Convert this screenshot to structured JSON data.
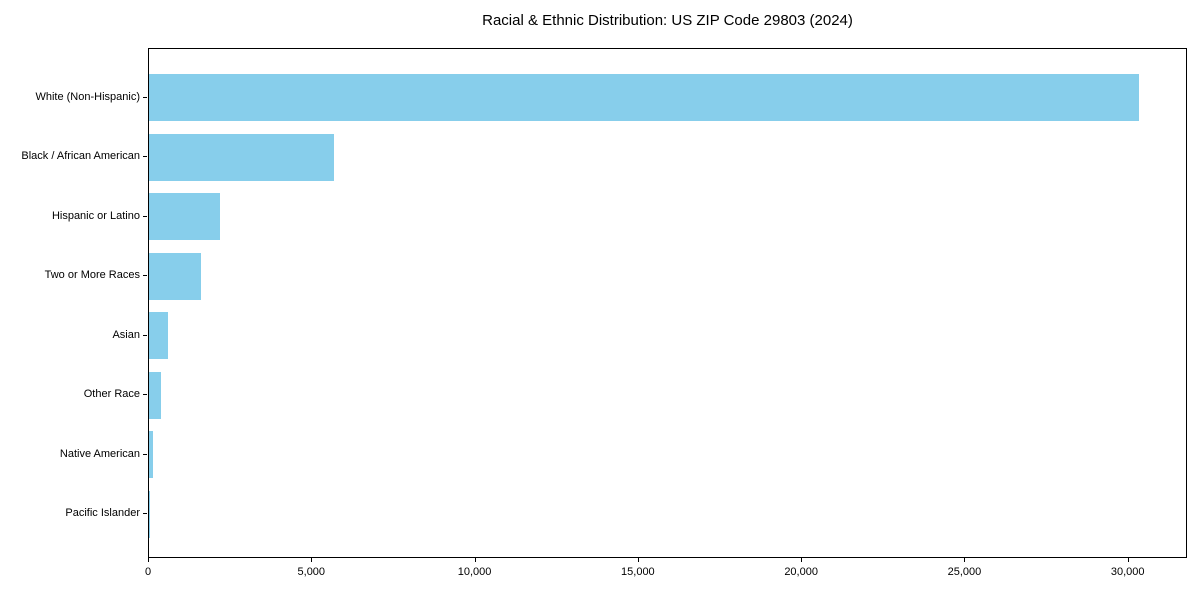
{
  "chart_data": {
    "type": "bar",
    "orientation": "horizontal",
    "title": "Racial & Ethnic Distribution: US ZIP Code 29803 (2024)",
    "xlabel": "",
    "ylabel": "",
    "categories": [
      "White (Non-Hispanic)",
      "Black / African American",
      "Hispanic or Latino",
      "Two or More Races",
      "Asian",
      "Other Race",
      "Native American",
      "Pacific Islander"
    ],
    "values": [
      30300,
      5650,
      2180,
      1600,
      580,
      370,
      110,
      15
    ],
    "xlim": [
      0,
      31815
    ],
    "xticks": {
      "values": [
        0,
        5000,
        10000,
        15000,
        20000,
        25000,
        30000
      ],
      "labels": [
        "0",
        "5,000",
        "10,000",
        "15,000",
        "20,000",
        "25,000",
        "30,000"
      ]
    },
    "bar_color": "#87CEEB",
    "grid": false,
    "legend_position": "none",
    "frame": "full-box"
  }
}
